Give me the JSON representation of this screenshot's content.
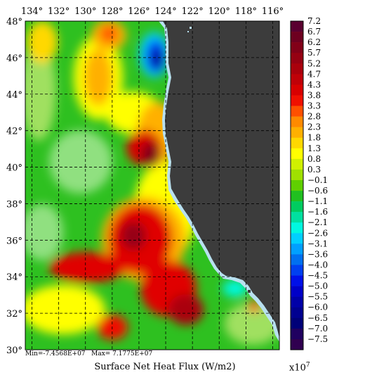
{
  "map": {
    "title": "Surface Net Heat Flux (W/m2)",
    "stats_min_label": "Min=-7.4568E+07",
    "stats_max_label": "Max= 7.1775E+07",
    "scale_base": "x10",
    "scale_exp": "7",
    "lon_labels": [
      "134°",
      "132°",
      "130°",
      "128°",
      "126°",
      "124°",
      "122°",
      "120°",
      "118°",
      "116°"
    ],
    "lat_labels": [
      "48°",
      "46°",
      "44°",
      "42°",
      "40°",
      "38°",
      "36°",
      "34°",
      "32°",
      "30°"
    ],
    "lon_values": [
      -134,
      -132,
      -130,
      -128,
      -126,
      -124,
      -122,
      -120,
      -118,
      -116
    ],
    "lat_values": [
      48,
      46,
      44,
      42,
      40,
      38,
      36,
      34,
      32,
      30
    ],
    "land_color": "#3c3c3c",
    "coast_color": "#b8e0f0"
  },
  "legend": {
    "labels": [
      "7.2",
      "6.7",
      "6.2",
      "5.7",
      "5.2",
      "4.7",
      "4.3",
      "3.8",
      "3.3",
      "2.8",
      "2.3",
      "1.8",
      "1.3",
      "0.8",
      "0.3",
      "−0.1",
      "−0.6",
      "−1.1",
      "−1.6",
      "−2.1",
      "−2.6",
      "−3.1",
      "−3.6",
      "−4.0",
      "−4.5",
      "−5.0",
      "−5.5",
      "−6.0",
      "−6.5",
      "−7.0",
      "−7.5"
    ],
    "colors": [
      "#5a0030",
      "#6e0020",
      "#820018",
      "#960012",
      "#aa000c",
      "#c00008",
      "#d80000",
      "#f01000",
      "#ff5000",
      "#ff8a00",
      "#ffb000",
      "#ffd800",
      "#ffff00",
      "#d0f000",
      "#a0e000",
      "#60d000",
      "#20c020",
      "#00cc60",
      "#00e0a0",
      "#00f8e0",
      "#00d0ff",
      "#00a0ff",
      "#0070f0",
      "#0040f0",
      "#0010e8",
      "#0000c8",
      "#0000a8",
      "#000090",
      "#000078",
      "#200060",
      "#300050"
    ]
  }
}
